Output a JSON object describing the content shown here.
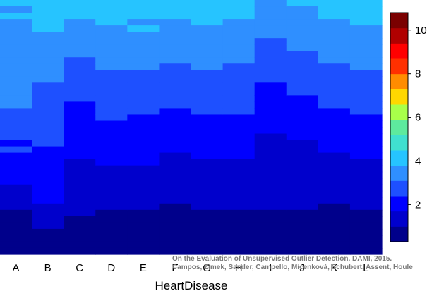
{
  "chart_data": {
    "type": "heatmap",
    "xlabel": "HeartDisease",
    "ylabel": "",
    "title": "",
    "categories": [
      "A",
      "B",
      "C",
      "D",
      "E",
      "F",
      "G",
      "H",
      "I",
      "J",
      "K",
      "L"
    ],
    "colorbar": {
      "min": 0.3,
      "max": 10.8,
      "ticks": [
        2,
        4,
        6,
        8,
        10
      ]
    },
    "colors": [
      "#00008B",
      "#0000CC",
      "#0000FF",
      "#1E50FF",
      "#2F8FFF",
      "#26C4FF",
      "#40E0D0",
      "#5EEA9E",
      "#A8FF4A",
      "#FFD700",
      "#FF8C00",
      "#FF3000",
      "#FF0000",
      "#B00000",
      "#7A0000"
    ],
    "rows": 40,
    "columns": [
      [
        4.0,
        3.7,
        4.2,
        3.6,
        3.5,
        3.5,
        3.6,
        3.6,
        3.6,
        3.5,
        3.5,
        3.5,
        3.5,
        3.4,
        3.4,
        3.3,
        3.2,
        3.0,
        2.9,
        3.0,
        2.8,
        2.8,
        2.3,
        2.6,
        1.8,
        2.3,
        2.2,
        2.2,
        1.9,
        1.6,
        1.3,
        1.0,
        1.0,
        0.9,
        0.8,
        0.8,
        0.7,
        0.7,
        0.7,
        0.6
      ],
      [
        4.0,
        4.0,
        4.0,
        3.9,
        3.8,
        3.7,
        3.6,
        3.5,
        3.4,
        3.3,
        3.3,
        3.2,
        3.1,
        3.0,
        2.9,
        2.8,
        2.7,
        2.7,
        2.6,
        2.6,
        2.5,
        2.5,
        2.4,
        2.3,
        2.3,
        2.2,
        2.2,
        2.1,
        2.0,
        1.9,
        1.8,
        1.7,
        1.6,
        1.5,
        1.2,
        1.0,
        0.9,
        0.8,
        0.7,
        0.6
      ],
      [
        4.2,
        4.0,
        3.8,
        3.7,
        3.6,
        3.5,
        3.4,
        3.3,
        3.2,
        3.0,
        2.9,
        2.8,
        2.7,
        2.6,
        2.5,
        2.4,
        2.3,
        2.2,
        2.1,
        2.0,
        1.9,
        1.9,
        1.8,
        1.7,
        1.7,
        1.6,
        1.6,
        1.5,
        1.5,
        1.4,
        1.3,
        1.2,
        1.1,
        1.0,
        0.9,
        0.8,
        0.8,
        0.7,
        0.7,
        0.6
      ],
      [
        4.1,
        4.0,
        3.9,
        3.8,
        3.7,
        3.6,
        3.5,
        3.4,
        3.3,
        3.2,
        3.1,
        3.0,
        2.9,
        2.8,
        2.7,
        2.6,
        2.6,
        2.5,
        2.4,
        2.3,
        2.2,
        2.1,
        2.0,
        1.9,
        1.8,
        1.7,
        1.6,
        1.5,
        1.4,
        1.3,
        1.2,
        1.1,
        1.0,
        0.9,
        0.8,
        0.8,
        0.7,
        0.7,
        0.7,
        0.6
      ],
      [
        4.0,
        3.9,
        3.8,
        3.7,
        3.8,
        3.7,
        3.5,
        3.4,
        3.3,
        3.2,
        3.1,
        3.0,
        2.9,
        2.8,
        2.7,
        2.6,
        2.5,
        2.4,
        2.3,
        2.3,
        2.2,
        2.1,
        2.0,
        1.9,
        1.8,
        1.7,
        1.6,
        1.5,
        1.4,
        1.3,
        1.2,
        1.1,
        1.0,
        0.9,
        0.9,
        0.8,
        0.7,
        0.7,
        0.6,
        0.6
      ],
      [
        4.0,
        3.9,
        3.8,
        3.7,
        3.6,
        3.5,
        3.4,
        3.3,
        3.2,
        3.1,
        3.0,
        2.9,
        2.8,
        2.7,
        2.6,
        2.5,
        2.4,
        2.3,
        2.2,
        2.1,
        2.0,
        1.9,
        1.8,
        1.7,
        1.6,
        1.5,
        1.4,
        1.3,
        1.3,
        1.2,
        1.1,
        1.0,
        0.9,
        0.9,
        0.8,
        0.8,
        0.7,
        0.7,
        0.6,
        0.6
      ],
      [
        4.1,
        4.0,
        3.9,
        3.8,
        3.7,
        3.6,
        3.5,
        3.4,
        3.3,
        3.2,
        3.1,
        3.0,
        2.9,
        2.8,
        2.7,
        2.6,
        2.5,
        2.4,
        2.3,
        2.2,
        2.1,
        2.0,
        1.9,
        1.8,
        1.7,
        1.6,
        1.5,
        1.4,
        1.3,
        1.2,
        1.1,
        1.0,
        1.0,
        0.9,
        0.9,
        0.8,
        0.8,
        0.7,
        0.7,
        0.6
      ],
      [
        4.0,
        3.9,
        3.8,
        3.7,
        3.6,
        3.5,
        3.4,
        3.3,
        3.2,
        3.1,
        3.0,
        2.9,
        2.8,
        2.7,
        2.6,
        2.6,
        2.5,
        2.4,
        2.3,
        2.2,
        2.1,
        2.0,
        1.9,
        1.8,
        1.7,
        1.6,
        1.5,
        1.4,
        1.3,
        1.2,
        1.1,
        1.0,
        1.0,
        0.9,
        0.9,
        0.8,
        0.8,
        0.7,
        0.7,
        0.6
      ],
      [
        3.7,
        3.5,
        3.4,
        3.3,
        3.2,
        3.1,
        3.0,
        2.9,
        2.8,
        2.7,
        2.6,
        2.5,
        2.4,
        2.3,
        2.2,
        2.1,
        2.0,
        1.9,
        1.8,
        1.8,
        1.7,
        1.6,
        1.5,
        1.5,
        1.4,
        1.3,
        1.3,
        1.2,
        1.2,
        1.1,
        1.1,
        1.0,
        1.0,
        0.9,
        0.9,
        0.8,
        0.8,
        0.7,
        0.7,
        0.6
      ],
      [
        3.8,
        3.7,
        3.6,
        3.5,
        3.4,
        3.3,
        3.2,
        3.1,
        3.0,
        2.9,
        2.8,
        2.7,
        2.6,
        2.5,
        2.4,
        2.3,
        2.2,
        2.1,
        2.0,
        1.9,
        1.8,
        1.7,
        1.6,
        1.5,
        1.4,
        1.3,
        1.3,
        1.2,
        1.2,
        1.1,
        1.1,
        1.0,
        1.0,
        0.9,
        0.9,
        0.8,
        0.8,
        0.7,
        0.7,
        0.6
      ],
      [
        4.0,
        3.9,
        3.8,
        3.7,
        3.6,
        3.5,
        3.4,
        3.3,
        3.2,
        3.1,
        3.0,
        2.9,
        2.8,
        2.7,
        2.6,
        2.5,
        2.4,
        2.3,
        2.2,
        2.1,
        2.0,
        1.9,
        1.8,
        1.7,
        1.6,
        1.5,
        1.4,
        1.3,
        1.2,
        1.1,
        1.0,
        1.0,
        0.9,
        0.9,
        0.8,
        0.8,
        0.7,
        0.7,
        0.6,
        0.6
      ],
      [
        4.1,
        4.0,
        3.9,
        3.8,
        3.7,
        3.6,
        3.5,
        3.4,
        3.3,
        3.2,
        3.1,
        3.0,
        2.9,
        2.8,
        2.7,
        2.6,
        2.5,
        2.4,
        2.3,
        2.2,
        2.1,
        2.0,
        1.9,
        1.8,
        1.7,
        1.6,
        1.5,
        1.4,
        1.3,
        1.2,
        1.1,
        1.0,
        1.0,
        0.9,
        0.9,
        0.8,
        0.8,
        0.7,
        0.7,
        0.6
      ]
    ]
  },
  "caption": {
    "line1": "On the Evaluation of Unsupervised Outlier Detection. DAMI, 2015.",
    "line2": "Campos, Zimek, Sander, Campello, Micenková, Schubert, Assent, Houle"
  }
}
